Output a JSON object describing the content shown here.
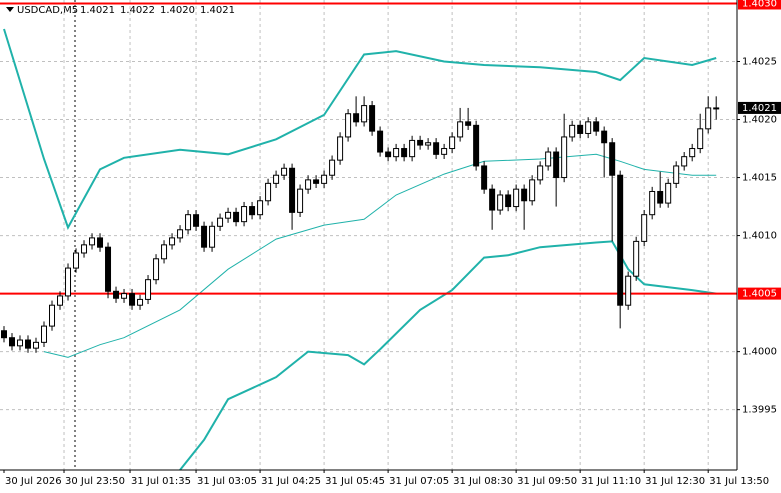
{
  "chart_data": {
    "type": "candlestick",
    "header": {
      "symbol": "USDCAD,M5",
      "values": [
        "1.4021",
        "1.4022",
        "1.4020",
        "1.4021"
      ]
    },
    "open": [
      1.40018,
      1.40012,
      1.40005,
      1.4001,
      1.40003,
      1.40008,
      1.40022,
      1.4004,
      1.40048,
      1.40072,
      1.40085,
      1.40092,
      1.40098,
      1.4009,
      1.40052,
      1.40046,
      1.4005,
      1.4004,
      1.40045,
      1.40062,
      1.4008,
      1.40092,
      1.40098,
      1.40105,
      1.40118,
      1.40108,
      1.4009,
      1.40108,
      1.40115,
      1.4012,
      1.40112,
      1.40125,
      1.40118,
      1.4013,
      1.40145,
      1.40152,
      1.40158,
      1.4012,
      1.4014,
      1.40148,
      1.40145,
      1.40152,
      1.40165,
      1.40185,
      1.40205,
      1.40198,
      1.40212,
      1.4019,
      1.40172,
      1.40168,
      1.40175,
      1.40168,
      1.40182,
      1.40178,
      1.4018,
      1.4017,
      1.40175,
      1.40185,
      1.40198,
      1.40195,
      1.4016,
      1.4014,
      1.40122,
      1.40135,
      1.40125,
      1.4014,
      1.4013,
      1.40148,
      1.4016,
      1.40172,
      1.4015,
      1.40185,
      1.40195,
      1.40188,
      1.40198,
      1.4019,
      1.4018,
      1.40152,
      1.4004,
      1.40065,
      1.40095,
      1.40118,
      1.40138,
      1.40128,
      1.40145,
      1.4016,
      1.40168,
      1.40175,
      1.40192,
      1.4021
    ],
    "high": [
      1.40022,
      1.40016,
      1.40014,
      1.40014,
      1.40012,
      1.40026,
      1.40044,
      1.40052,
      1.40076,
      1.40089,
      1.40096,
      1.40102,
      1.40102,
      1.40094,
      1.40056,
      1.40054,
      1.40054,
      1.40049,
      1.40066,
      1.40084,
      1.40096,
      1.40102,
      1.40109,
      1.40122,
      1.40122,
      1.40112,
      1.40112,
      1.40119,
      1.40124,
      1.40124,
      1.40129,
      1.40129,
      1.40134,
      1.40149,
      1.40156,
      1.40162,
      1.40162,
      1.40144,
      1.40152,
      1.40152,
      1.40156,
      1.40169,
      1.40189,
      1.40209,
      1.4022,
      1.4022,
      1.40216,
      1.40194,
      1.40176,
      1.40179,
      1.40179,
      1.40186,
      1.40186,
      1.40184,
      1.40184,
      1.40179,
      1.40189,
      1.4021,
      1.4021,
      1.40199,
      1.40164,
      1.40144,
      1.40139,
      1.40139,
      1.40144,
      1.40144,
      1.40152,
      1.40164,
      1.40176,
      1.40176,
      1.40205,
      1.40199,
      1.40199,
      1.40202,
      1.40202,
      1.40194,
      1.40184,
      1.40156,
      1.40069,
      1.40099,
      1.40122,
      1.40142,
      1.40155,
      1.40149,
      1.40164,
      1.40172,
      1.40179,
      1.40205,
      1.4022,
      1.4022
    ],
    "low": [
      1.40008,
      1.40001,
      1.40001,
      1.39999,
      1.39999,
      1.40004,
      1.40018,
      1.40036,
      1.40044,
      1.40068,
      1.40081,
      1.40088,
      1.40086,
      1.40046,
      1.40042,
      1.40042,
      1.40036,
      1.40036,
      1.40041,
      1.40058,
      1.40076,
      1.40088,
      1.40094,
      1.40101,
      1.40104,
      1.40086,
      1.40086,
      1.40104,
      1.40111,
      1.40108,
      1.40108,
      1.40114,
      1.40114,
      1.40126,
      1.40141,
      1.40148,
      1.40105,
      1.40116,
      1.40136,
      1.40141,
      1.40141,
      1.40148,
      1.40161,
      1.40181,
      1.40194,
      1.40194,
      1.40186,
      1.40168,
      1.40164,
      1.40164,
      1.40164,
      1.40164,
      1.40174,
      1.40174,
      1.40166,
      1.40166,
      1.40171,
      1.40181,
      1.40191,
      1.40156,
      1.40136,
      1.40105,
      1.40118,
      1.40121,
      1.40121,
      1.40105,
      1.40126,
      1.40144,
      1.40156,
      1.40125,
      1.40146,
      1.40181,
      1.40184,
      1.40184,
      1.40186,
      1.4015,
      1.40095,
      1.4002,
      1.40036,
      1.40061,
      1.40091,
      1.40114,
      1.40124,
      1.40124,
      1.40141,
      1.40156,
      1.40164,
      1.40171,
      1.40188,
      1.402
    ],
    "close": [
      1.40012,
      1.40005,
      1.4001,
      1.40003,
      1.40008,
      1.40022,
      1.4004,
      1.40048,
      1.40072,
      1.40085,
      1.40092,
      1.40098,
      1.4009,
      1.40052,
      1.40046,
      1.4005,
      1.4004,
      1.40045,
      1.40062,
      1.4008,
      1.40092,
      1.40098,
      1.40105,
      1.40118,
      1.40108,
      1.4009,
      1.40108,
      1.40115,
      1.4012,
      1.40112,
      1.40125,
      1.40118,
      1.4013,
      1.40145,
      1.40152,
      1.40158,
      1.4012,
      1.4014,
      1.40148,
      1.40145,
      1.40152,
      1.40165,
      1.40185,
      1.40205,
      1.40198,
      1.40212,
      1.4019,
      1.40172,
      1.40168,
      1.40175,
      1.40168,
      1.40182,
      1.40178,
      1.4018,
      1.4017,
      1.40175,
      1.40185,
      1.40198,
      1.40195,
      1.4016,
      1.4014,
      1.40122,
      1.40135,
      1.40125,
      1.4014,
      1.4013,
      1.40148,
      1.4016,
      1.40172,
      1.4015,
      1.40185,
      1.40195,
      1.40188,
      1.40198,
      1.4019,
      1.4018,
      1.40152,
      1.4004,
      1.40065,
      1.40095,
      1.40118,
      1.40138,
      1.40128,
      1.40145,
      1.4016,
      1.40168,
      1.40175,
      1.40192,
      1.4021,
      1.4021
    ],
    "bands": [
      {
        "color": "#20b2aa",
        "x": [
          0,
          5,
          8,
          12,
          15,
          22,
          28,
          34,
          40,
          45,
          49,
          55,
          60,
          67,
          74,
          77,
          80,
          86,
          89
        ],
        "values": [
          1.40278,
          1.40166,
          1.40107,
          1.40157,
          1.40167,
          1.40174,
          1.4017,
          1.40183,
          1.40204,
          1.40256,
          1.40259,
          1.4025,
          1.40247,
          1.40245,
          1.40241,
          1.40234,
          1.40253,
          1.40247,
          1.40253
        ]
      },
      {
        "color": "#20b2aa",
        "x": [
          5,
          8,
          12,
          15,
          22,
          28,
          34,
          40,
          45,
          49,
          55,
          60,
          67,
          74,
          77,
          80,
          86,
          89
        ],
        "values": [
          1.4,
          1.39995,
          1.40006,
          1.40012,
          1.40036,
          1.40071,
          1.40097,
          1.40109,
          1.40114,
          1.40135,
          1.40153,
          1.40164,
          1.40166,
          1.4017,
          1.40164,
          1.40157,
          1.40152,
          1.40152
        ]
      },
      {
        "color": "#20b2aa",
        "x": [
          22,
          25,
          28,
          34,
          38,
          43,
          45,
          47,
          52,
          56,
          60,
          63,
          67,
          74,
          76,
          78,
          80,
          86,
          89
        ],
        "values": [
          1.39898,
          1.39924,
          1.39959,
          1.39978,
          1.4,
          1.39997,
          1.39989,
          1.40002,
          1.40036,
          1.40053,
          1.40081,
          1.40083,
          1.4009,
          1.40094,
          1.40095,
          1.40071,
          1.40058,
          1.40053,
          1.4005
        ]
      }
    ],
    "levels": [
      {
        "value": 1.403,
        "label": "1.4030",
        "color": "#ff0000"
      },
      {
        "value": 1.4005,
        "label": "1.4005",
        "color": "#ff0000"
      }
    ],
    "last_price": {
      "value": 1.4021,
      "label": "1.4021"
    },
    "ylim": [
      1.39898,
      1.40303
    ],
    "yticks": [
      {
        "value": 1.3995,
        "label": "1.3995"
      },
      {
        "value": 1.4,
        "label": "1.4000"
      },
      {
        "value": 1.401,
        "label": "1.4010"
      },
      {
        "value": 1.4015,
        "label": "1.4015"
      },
      {
        "value": 1.402,
        "label": "1.4020"
      },
      {
        "value": 1.4025,
        "label": "1.4025"
      }
    ],
    "xlim": [
      -0.5,
      91.6
    ],
    "xticks": [
      {
        "value": 0,
        "label": "30 Jul 2026"
      },
      {
        "value": 7.5,
        "label": "30 Jul 23:50"
      },
      {
        "value": 15.75,
        "label": "31 Jul 01:35"
      },
      {
        "value": 24,
        "label": "31 Jul 03:05"
      },
      {
        "value": 32,
        "label": "31 Jul 04:25"
      },
      {
        "value": 40,
        "label": "31 Jul 05:45"
      },
      {
        "value": 48,
        "label": "31 Jul 07:05"
      },
      {
        "value": 56,
        "label": "31 Jul 08:30"
      },
      {
        "value": 64,
        "label": "31 Jul 09:50"
      },
      {
        "value": 72,
        "label": "31 Jul 11:10"
      },
      {
        "value": 80,
        "label": "31 Jul 12:30"
      },
      {
        "value": 88,
        "label": "31 Jul 13:50"
      }
    ],
    "grid": true
  }
}
